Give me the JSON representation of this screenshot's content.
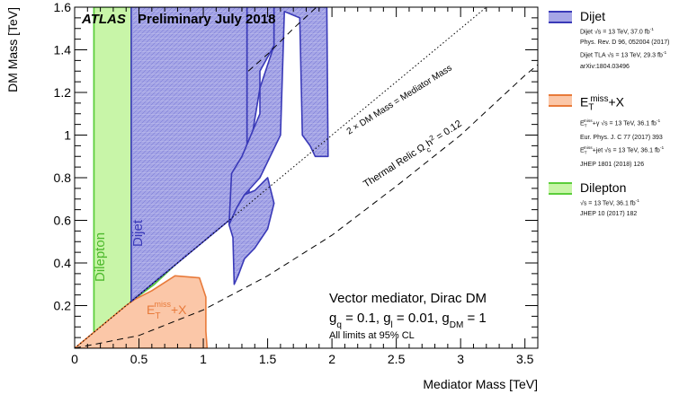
{
  "chart_data": {
    "type": "area",
    "title": "Preliminary July 2018",
    "experiment_label": "ATLAS",
    "xlabel": "Mediator Mass [TeV]",
    "ylabel": "DM Mass [TeV]",
    "xlim": [
      0,
      3.6
    ],
    "ylim": [
      0,
      1.6
    ],
    "x_ticks": [
      "0",
      "0.5",
      "1",
      "1.5",
      "2",
      "2.5",
      "3",
      "3.5"
    ],
    "y_ticks": [
      "0.2",
      "0.4",
      "0.6",
      "0.8",
      "1",
      "1.2",
      "1.4",
      "1.6"
    ],
    "grid": false,
    "legend_position": "right",
    "annotations": {
      "model": "Vector mediator, Dirac DM",
      "couplings": "g_q = 0.1, g_l = 0.01, g_DM = 1",
      "note": "All limits at 95% CL",
      "kinematic_line": "2 × DM Mass = Mediator Mass",
      "relic_line": "Thermal Relic Ω_c h² = 0.12",
      "dilepton_region_label": "Dilepton",
      "dijet_region_label": "Dijet",
      "metx_region_label": "E_T^miss+X"
    },
    "series": [
      {
        "name": "Dijet",
        "color": "#a6a6e6",
        "edge_color": "#3a3ab8",
        "hatched": true,
        "polygons": [
          {
            "points": [
              [
                0.44,
                0.22
              ],
              [
                0.44,
                1.6
              ],
              [
                1.34,
                1.6
              ],
              [
                1.34,
                0.67
              ],
              [
                1.0,
                0.5
              ],
              [
                0.7,
                0.35
              ],
              [
                0.5,
                0.25
              ],
              [
                0.44,
                0.22
              ]
            ]
          },
          {
            "points": [
              [
                1.34,
                0.67
              ],
              [
                1.34,
                1.6
              ],
              [
                1.55,
                1.6
              ],
              [
                1.55,
                1.42
              ],
              [
                1.44,
                1.3
              ],
              [
                1.44,
                1.22
              ],
              [
                1.38,
                1.0
              ],
              [
                1.35,
                0.67
              ]
            ]
          },
          {
            "points": [
              [
                1.44,
                1.1
              ],
              [
                1.44,
                1.22
              ],
              [
                1.55,
                1.42
              ],
              [
                1.55,
                1.6
              ],
              [
                1.96,
                1.6
              ],
              [
                1.97,
                0.9
              ],
              [
                1.87,
                0.9
              ],
              [
                1.83,
                0.95
              ],
              [
                1.77,
                1.0
              ],
              [
                1.75,
                1.55
              ],
              [
                1.63,
                1.58
              ],
              [
                1.6,
                1.0
              ],
              [
                1.44,
                0.8
              ],
              [
                1.32,
                0.72
              ],
              [
                1.26,
                0.66
              ],
              [
                1.2,
                0.58
              ],
              [
                1.22,
                0.82
              ],
              [
                1.3,
                0.9
              ],
              [
                1.44,
                1.1
              ]
            ]
          },
          {
            "points": [
              [
                1.2,
                0.58
              ],
              [
                1.26,
                0.66
              ],
              [
                1.32,
                0.72
              ],
              [
                1.4,
                0.74
              ],
              [
                1.5,
                0.8
              ],
              [
                1.55,
                0.68
              ],
              [
                1.5,
                0.56
              ],
              [
                1.4,
                0.47
              ],
              [
                1.32,
                0.42
              ],
              [
                1.27,
                0.34
              ],
              [
                1.24,
                0.3
              ],
              [
                1.23,
                0.52
              ]
            ]
          }
        ]
      },
      {
        "name": "E_T^miss+X",
        "color": "#fbc7a8",
        "edge_color": "#e87a3a",
        "hatched": false,
        "polygons": [
          {
            "points": [
              [
                0.0,
                0.0
              ],
              [
                0.4,
                0.2
              ],
              [
                0.47,
                0.23
              ],
              [
                0.6,
                0.27
              ],
              [
                0.78,
                0.34
              ],
              [
                0.97,
                0.33
              ],
              [
                1.02,
                0.24
              ],
              [
                1.02,
                0.08
              ],
              [
                1.03,
                0.0
              ]
            ]
          }
        ]
      },
      {
        "name": "Dilepton",
        "color": "#c8f5a8",
        "edge_color": "#5acd3a",
        "hatched": false,
        "polygons": [
          {
            "points": [
              [
                0.15,
                0.0
              ],
              [
                0.15,
                1.6
              ],
              [
                0.44,
                1.6
              ],
              [
                0.44,
                0.22
              ],
              [
                0.62,
                0.3
              ],
              [
                0.85,
                0.43
              ],
              [
                1.08,
                0.55
              ],
              [
                1.34,
                0.68
              ],
              [
                1.34,
                1.6
              ],
              [
                0.44,
                1.6
              ]
            ]
          },
          {
            "points": [
              [
                0.15,
                0.0
              ],
              [
                0.15,
                1.6
              ],
              [
                0.44,
                1.6
              ],
              [
                0.44,
                0.0
              ],
              [
                0.36,
                0.0
              ],
              [
                0.36,
                0.03
              ],
              [
                0.38,
                0.08
              ],
              [
                0.42,
                0.2
              ],
              [
                0.44,
                0.22
              ]
            ]
          }
        ]
      }
    ],
    "lines": [
      {
        "name": "kinematic",
        "style": "dotted",
        "points": [
          [
            0.0,
            0.0
          ],
          [
            3.2,
            1.6
          ]
        ]
      },
      {
        "name": "relic",
        "style": "dashed",
        "points": [
          [
            0.0,
            0.0
          ],
          [
            0.5,
            0.06
          ],
          [
            1.0,
            0.18
          ],
          [
            1.5,
            0.34
          ],
          [
            2.0,
            0.53
          ],
          [
            2.5,
            0.76
          ],
          [
            3.0,
            1.0
          ],
          [
            3.5,
            1.28
          ],
          [
            3.6,
            1.33
          ]
        ]
      },
      {
        "name": "relic-upper",
        "style": "dashed",
        "points": [
          [
            1.35,
            1.3
          ],
          [
            1.5,
            1.38
          ],
          [
            1.7,
            1.5
          ],
          [
            1.88,
            1.6
          ]
        ]
      }
    ]
  },
  "legend": [
    {
      "key": "dijet",
      "title": "Dijet",
      "fill": "#a6a6e6",
      "border": "#3a3ab8",
      "lines": [
        "Dijet √s = 13 TeV, 37.0 fb⁻¹",
        "Phys. Rev. D 96, 052004 (2017)",
        "Dijet TLA √s = 13 TeV, 29.3 fb⁻¹",
        "arXiv:1804.03496"
      ]
    },
    {
      "key": "metx",
      "title": "E_T^miss+X",
      "fill": "#fbc7a8",
      "border": "#e87a3a",
      "lines": [
        "E_T^miss+γ √s = 13 TeV, 36.1 fb⁻¹",
        "Eur. Phys. J. C 77 (2017) 393",
        "E_T^miss+jet √s = 13 TeV, 36.1 fb⁻¹",
        "JHEP 1801 (2018) 126"
      ]
    },
    {
      "key": "dilepton",
      "title": "Dilepton",
      "fill": "#c8f5a8",
      "border": "#5acd3a",
      "lines": [
        "√s = 13 TeV, 36.1 fb⁻¹",
        "JHEP 10 (2017) 182"
      ]
    }
  ]
}
